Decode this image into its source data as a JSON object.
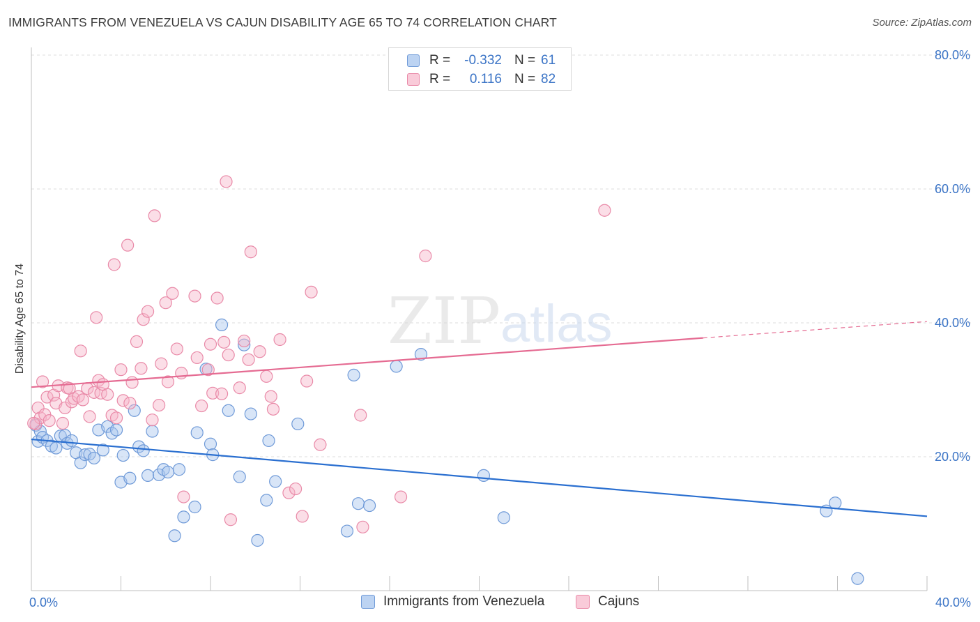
{
  "title": "IMMIGRANTS FROM VENEZUELA VS CAJUN DISABILITY AGE 65 TO 74 CORRELATION CHART",
  "source": "Source: ZipAtlas.com",
  "watermark": {
    "zip": "ZIP",
    "atlas": "atlas"
  },
  "colors": {
    "blue": "#3b74c6",
    "blue_fill": "#a9c5ee",
    "blue_stroke": "#6f9ad8",
    "blue_line": "#2a6fd0",
    "pink_fill": "#f6b6c9",
    "pink_stroke": "#e98aa8",
    "pink_line": "#e56b92",
    "grid": "#dddddd"
  },
  "legend_top": {
    "rows": [
      {
        "r_label": "R =",
        "r_value": "-0.332",
        "n_label": "N =",
        "n_value": "61"
      },
      {
        "r_label": "R =",
        "r_value": "0.116",
        "n_label": "N =",
        "n_value": "82"
      }
    ]
  },
  "legend_bottom": {
    "series": [
      "Immigrants from Venezuela",
      "Cajuns"
    ]
  },
  "chart_data": {
    "type": "scatter",
    "title": "IMMIGRANTS FROM VENEZUELA VS CAJUN DISABILITY AGE 65 TO 74 CORRELATION CHART",
    "xlabel": "",
    "ylabel": "Disability Age 65 to 74",
    "xlim": [
      0,
      40
    ],
    "ylim": [
      0,
      80
    ],
    "x_tick_labels": [
      "0.0%",
      "40.0%"
    ],
    "y_tick_labels": [
      "80.0%",
      "60.0%",
      "40.0%",
      "20.0%"
    ],
    "y_ticks": [
      80,
      60,
      40,
      20
    ],
    "grid": true,
    "series": [
      {
        "name": "Immigrants from Venezuela",
        "color": "#a9c5ee",
        "R": -0.332,
        "N": 61,
        "trend": {
          "x": [
            0.0,
            40.0
          ],
          "y": [
            22.6,
            11.1
          ],
          "dashed_from": null
        },
        "points": [
          [
            0.2,
            24.7
          ],
          [
            0.3,
            22.3
          ],
          [
            0.4,
            23.8
          ],
          [
            0.5,
            22.9
          ],
          [
            0.7,
            22.4
          ],
          [
            0.9,
            21.6
          ],
          [
            1.1,
            21.3
          ],
          [
            1.3,
            23.1
          ],
          [
            1.5,
            23.2
          ],
          [
            1.6,
            22.0
          ],
          [
            1.8,
            22.4
          ],
          [
            2.0,
            20.6
          ],
          [
            2.2,
            19.1
          ],
          [
            2.4,
            20.3
          ],
          [
            2.6,
            20.4
          ],
          [
            2.8,
            19.8
          ],
          [
            3.0,
            24.0
          ],
          [
            3.2,
            21.0
          ],
          [
            3.4,
            24.5
          ],
          [
            3.6,
            23.5
          ],
          [
            3.8,
            24.0
          ],
          [
            4.0,
            16.2
          ],
          [
            4.1,
            20.2
          ],
          [
            4.4,
            16.8
          ],
          [
            4.6,
            26.9
          ],
          [
            4.8,
            21.5
          ],
          [
            5.0,
            20.9
          ],
          [
            5.2,
            17.2
          ],
          [
            5.4,
            23.8
          ],
          [
            5.7,
            17.3
          ],
          [
            5.9,
            18.1
          ],
          [
            6.1,
            17.7
          ],
          [
            6.4,
            8.2
          ],
          [
            6.6,
            18.1
          ],
          [
            6.8,
            11.0
          ],
          [
            7.3,
            12.5
          ],
          [
            7.4,
            23.6
          ],
          [
            7.8,
            33.1
          ],
          [
            8.0,
            21.9
          ],
          [
            8.1,
            20.3
          ],
          [
            8.5,
            39.7
          ],
          [
            8.8,
            26.9
          ],
          [
            9.3,
            17.0
          ],
          [
            9.5,
            36.7
          ],
          [
            9.8,
            26.4
          ],
          [
            10.1,
            7.5
          ],
          [
            10.5,
            13.5
          ],
          [
            10.6,
            22.4
          ],
          [
            10.9,
            16.3
          ],
          [
            11.9,
            24.9
          ],
          [
            14.1,
            8.9
          ],
          [
            14.4,
            32.2
          ],
          [
            14.6,
            13.0
          ],
          [
            15.1,
            12.7
          ],
          [
            16.3,
            33.5
          ],
          [
            17.4,
            35.3
          ],
          [
            20.2,
            17.2
          ],
          [
            21.1,
            10.9
          ],
          [
            35.5,
            11.9
          ],
          [
            35.9,
            13.1
          ],
          [
            36.9,
            1.8
          ]
        ]
      },
      {
        "name": "Cajuns",
        "color": "#f6b6c9",
        "R": 0.116,
        "N": 82,
        "trend": {
          "x": [
            0.0,
            40.0
          ],
          "y": [
            30.4,
            40.2
          ],
          "dashed_from": 30.0
        },
        "points": [
          [
            0.2,
            24.9
          ],
          [
            0.3,
            27.3
          ],
          [
            0.4,
            25.8
          ],
          [
            0.5,
            31.2
          ],
          [
            0.6,
            26.3
          ],
          [
            0.7,
            28.9
          ],
          [
            0.8,
            25.4
          ],
          [
            1.0,
            29.2
          ],
          [
            1.1,
            28.0
          ],
          [
            1.2,
            30.6
          ],
          [
            1.4,
            25.0
          ],
          [
            1.5,
            27.3
          ],
          [
            1.6,
            30.3
          ],
          [
            1.7,
            30.2
          ],
          [
            1.8,
            28.2
          ],
          [
            1.9,
            28.7
          ],
          [
            2.1,
            29.0
          ],
          [
            2.2,
            35.8
          ],
          [
            2.3,
            28.5
          ],
          [
            2.5,
            30.2
          ],
          [
            2.6,
            26.0
          ],
          [
            2.8,
            29.6
          ],
          [
            2.9,
            40.8
          ],
          [
            3.0,
            31.4
          ],
          [
            3.1,
            29.5
          ],
          [
            3.2,
            30.8
          ],
          [
            3.4,
            29.3
          ],
          [
            3.6,
            26.2
          ],
          [
            3.7,
            48.7
          ],
          [
            3.8,
            25.8
          ],
          [
            4.0,
            33.0
          ],
          [
            4.1,
            28.4
          ],
          [
            4.3,
            51.6
          ],
          [
            4.4,
            28.0
          ],
          [
            4.5,
            31.1
          ],
          [
            4.7,
            37.2
          ],
          [
            4.9,
            33.2
          ],
          [
            5.0,
            40.5
          ],
          [
            5.2,
            41.7
          ],
          [
            5.4,
            25.5
          ],
          [
            5.5,
            56.0
          ],
          [
            5.7,
            27.7
          ],
          [
            5.8,
            33.9
          ],
          [
            6.0,
            43.0
          ],
          [
            6.1,
            31.2
          ],
          [
            6.3,
            44.4
          ],
          [
            6.5,
            36.1
          ],
          [
            6.7,
            32.5
          ],
          [
            6.8,
            14.0
          ],
          [
            7.3,
            44.0
          ],
          [
            7.4,
            34.8
          ],
          [
            7.6,
            27.6
          ],
          [
            7.9,
            33.0
          ],
          [
            8.0,
            36.8
          ],
          [
            8.1,
            29.5
          ],
          [
            8.3,
            43.7
          ],
          [
            8.5,
            29.4
          ],
          [
            8.6,
            37.1
          ],
          [
            8.7,
            61.1
          ],
          [
            8.8,
            35.2
          ],
          [
            8.9,
            10.6
          ],
          [
            9.3,
            30.3
          ],
          [
            9.5,
            37.3
          ],
          [
            9.7,
            34.5
          ],
          [
            9.8,
            50.6
          ],
          [
            10.2,
            35.7
          ],
          [
            10.5,
            32.0
          ],
          [
            10.7,
            29.0
          ],
          [
            10.8,
            27.1
          ],
          [
            11.1,
            37.5
          ],
          [
            11.5,
            14.6
          ],
          [
            11.8,
            15.2
          ],
          [
            12.1,
            11.1
          ],
          [
            12.3,
            31.3
          ],
          [
            12.5,
            44.6
          ],
          [
            12.9,
            21.8
          ],
          [
            14.7,
            26.2
          ],
          [
            14.8,
            9.5
          ],
          [
            16.5,
            14.0
          ],
          [
            17.6,
            50.0
          ],
          [
            25.6,
            56.8
          ],
          [
            0.1,
            25.0
          ]
        ]
      }
    ]
  }
}
